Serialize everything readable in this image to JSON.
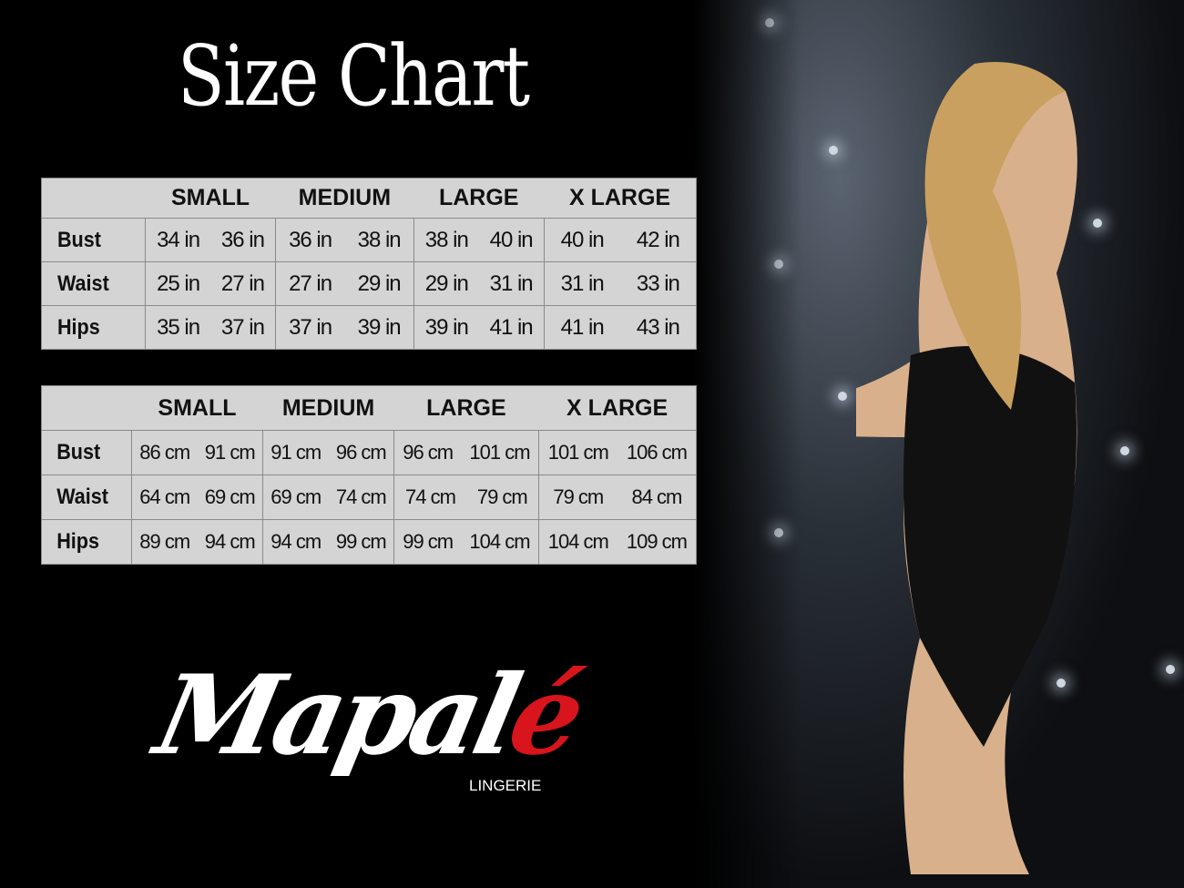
{
  "title": "Size Chart",
  "inch_table": {
    "headers": [
      "SMALL",
      "MEDIUM",
      "LARGE",
      "X LARGE"
    ],
    "rows": [
      {
        "label": "Bust",
        "cells": [
          [
            "34 in",
            "36 in"
          ],
          [
            "36 in",
            "38 in"
          ],
          [
            "38 in",
            "40 in"
          ],
          [
            "40 in",
            "42 in"
          ]
        ]
      },
      {
        "label": "Waist",
        "cells": [
          [
            "25 in",
            "27 in"
          ],
          [
            "27 in",
            "29 in"
          ],
          [
            "29 in",
            "31 in"
          ],
          [
            "31 in",
            "33 in"
          ]
        ]
      },
      {
        "label": "Hips",
        "cells": [
          [
            "35 in",
            "37 in"
          ],
          [
            "37 in",
            "39 in"
          ],
          [
            "39 in",
            "41 in"
          ],
          [
            "41 in",
            "43 in"
          ]
        ]
      }
    ]
  },
  "cm_table": {
    "headers": [
      "SMALL",
      "MEDIUM",
      "LARGE",
      "X LARGE"
    ],
    "rows": [
      {
        "label": "Bust",
        "cells": [
          [
            "86 cm",
            "91 cm"
          ],
          [
            "91 cm",
            "96 cm"
          ],
          [
            "96 cm",
            "101 cm"
          ],
          [
            "101 cm",
            "106 cm"
          ]
        ]
      },
      {
        "label": "Waist",
        "cells": [
          [
            "64 cm",
            "69 cm"
          ],
          [
            "69 cm",
            "74 cm"
          ],
          [
            "74 cm",
            "79 cm"
          ],
          [
            "79 cm",
            "84 cm"
          ]
        ]
      },
      {
        "label": "Hips",
        "cells": [
          [
            "89 cm",
            "94 cm"
          ],
          [
            "94 cm",
            "99 cm"
          ],
          [
            "99 cm",
            "104 cm"
          ],
          [
            "104 cm",
            "109 cm"
          ]
        ]
      }
    ]
  },
  "logo": {
    "main": "Mapal",
    "accent": "é",
    "sub": "LINGERIE"
  },
  "colors": {
    "background": "#000000",
    "table": "#d4d4d4",
    "accent": "#d8141c"
  }
}
